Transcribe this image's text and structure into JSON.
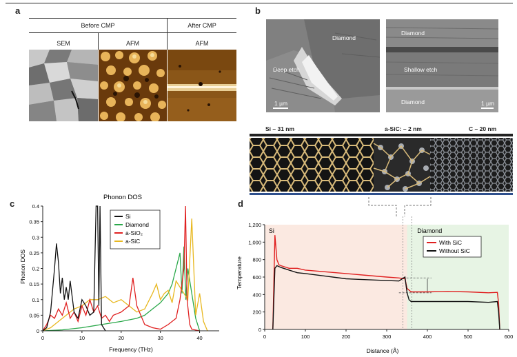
{
  "panel_a": {
    "letter": "a",
    "header_before": "Before CMP",
    "header_after": "After CMP",
    "col_sem": "SEM",
    "col_afm1": "AFM",
    "col_afm2": "AFM"
  },
  "panel_b": {
    "letter": "b",
    "left": {
      "diamond": "Diamond",
      "deep_etch": "Deep etch",
      "scale": "1 µm"
    },
    "right": {
      "diamond_top": "Diamond",
      "shallow_etch": "Shallow etch",
      "diamond_bottom": "Diamond",
      "scale": "1 µm"
    },
    "struct_si": "Si – 31 nm",
    "struct_asic": "a-SiC: – 2 nm",
    "struct_c": "C – 20 nm"
  },
  "chart_data": [
    {
      "type": "line",
      "panel": "c",
      "title": "Phonon DOS",
      "xlabel": "Frequency (THz)",
      "ylabel": "Phonon DOS",
      "xlim": [
        0,
        45
      ],
      "ylim": [
        0,
        0.4
      ],
      "xticks": [
        "0",
        "10",
        "20",
        "30",
        "40"
      ],
      "yticks": [
        "0",
        "0.05",
        "0.1",
        "0.15",
        "0.2",
        "0.25",
        "0.3",
        "0.35",
        "0.4"
      ],
      "legend": [
        "Si",
        "Diamond",
        "a-SiO₂",
        "a-SiC"
      ],
      "colors": [
        "#111111",
        "#2aa84a",
        "#e02020",
        "#e8b820"
      ],
      "series": [
        {
          "name": "Si",
          "x": [
            0,
            1,
            2,
            3,
            3.5,
            4,
            4.5,
            5,
            5.5,
            6,
            6.5,
            7,
            8,
            9,
            10,
            11,
            12,
            13,
            13.6,
            14,
            14.3,
            14.6,
            15,
            16
          ],
          "y": [
            0,
            0.01,
            0.06,
            0.2,
            0.28,
            0.22,
            0.12,
            0.17,
            0.1,
            0.14,
            0.1,
            0.16,
            0.06,
            0.04,
            0.1,
            0.08,
            0.05,
            0.06,
            0.4,
            0.4,
            0.08,
            0.4,
            0.02,
            0
          ]
        },
        {
          "name": "Diamond",
          "x": [
            0,
            5,
            10,
            15,
            20,
            24,
            26,
            28,
            30,
            32,
            33,
            34,
            35,
            35.5,
            36,
            36.5,
            37,
            38,
            39,
            40
          ],
          "y": [
            0,
            0.003,
            0.01,
            0.02,
            0.03,
            0.04,
            0.05,
            0.07,
            0.09,
            0.12,
            0.15,
            0.2,
            0.25,
            0.12,
            0.27,
            0.1,
            0.2,
            0.12,
            0.04,
            0
          ]
        },
        {
          "name": "a-SiO2",
          "x": [
            0,
            1,
            2,
            3,
            4,
            5,
            6,
            7,
            8,
            9,
            10,
            11,
            12,
            13,
            14,
            15,
            16,
            17,
            18,
            20,
            22,
            23,
            24,
            25,
            26,
            28,
            30,
            32,
            34,
            35,
            36,
            36.4,
            36.8,
            37.5,
            38,
            40
          ],
          "y": [
            0,
            0.02,
            0.05,
            0.04,
            0.07,
            0.05,
            0.09,
            0.04,
            0.06,
            0.03,
            0.08,
            0.05,
            0.1,
            0.06,
            0.08,
            0.04,
            0.05,
            0.03,
            0.05,
            0.06,
            0.08,
            0.17,
            0.08,
            0.05,
            0.02,
            0.01,
            0.005,
            0.02,
            0.04,
            0.1,
            0.2,
            0.4,
            0.1,
            0.02,
            0.005,
            0
          ]
        },
        {
          "name": "a-SiC",
          "x": [
            0,
            2,
            4,
            6,
            8,
            10,
            12,
            14,
            16,
            18,
            20,
            22,
            24,
            26,
            28,
            29,
            30,
            31,
            32,
            33,
            34,
            35,
            36,
            37,
            38,
            39,
            40,
            41,
            42
          ],
          "y": [
            0,
            0.01,
            0.03,
            0.05,
            0.07,
            0.08,
            0.1,
            0.1,
            0.11,
            0.09,
            0.1,
            0.08,
            0.06,
            0.07,
            0.12,
            0.15,
            0.1,
            0.12,
            0.13,
            0.09,
            0.16,
            0.14,
            0.12,
            0.1,
            0.36,
            0.05,
            0.12,
            0.03,
            0
          ]
        }
      ]
    },
    {
      "type": "line",
      "panel": "d",
      "xlabel": "Distance (Å)",
      "ylabel": "Temperature",
      "xlim": [
        0,
        600
      ],
      "ylim": [
        0,
        1200
      ],
      "xticks": [
        "0",
        "100",
        "200",
        "300",
        "400",
        "500",
        "600"
      ],
      "yticks": [
        "0",
        "200",
        "400",
        "600",
        "800",
        "1,000",
        "1,200"
      ],
      "region_left": "Si",
      "region_right": "Diamond",
      "legend": [
        "With SiC",
        "Without SiC"
      ],
      "colors": [
        "#e02020",
        "#111111"
      ],
      "series": [
        {
          "name": "With SiC",
          "x": [
            20,
            25,
            30,
            35,
            40,
            60,
            80,
            100,
            150,
            200,
            250,
            300,
            330,
            345,
            350,
            360,
            380,
            400,
            450,
            500,
            550,
            572,
            575,
            578
          ],
          "y": [
            0,
            1080,
            800,
            740,
            730,
            700,
            700,
            680,
            660,
            640,
            620,
            600,
            590,
            580,
            470,
            430,
            430,
            430,
            435,
            430,
            420,
            425,
            300,
            0
          ]
        },
        {
          "name": "Without SiC",
          "x": [
            20,
            25,
            30,
            40,
            60,
            80,
            100,
            150,
            200,
            250,
            300,
            330,
            345,
            350,
            355,
            360,
            380,
            400,
            450,
            500,
            550,
            572,
            575,
            578
          ],
          "y": [
            0,
            700,
            730,
            710,
            680,
            650,
            640,
            610,
            580,
            570,
            560,
            555,
            600,
            420,
            340,
            320,
            320,
            320,
            320,
            320,
            310,
            320,
            200,
            0
          ]
        }
      ]
    }
  ]
}
